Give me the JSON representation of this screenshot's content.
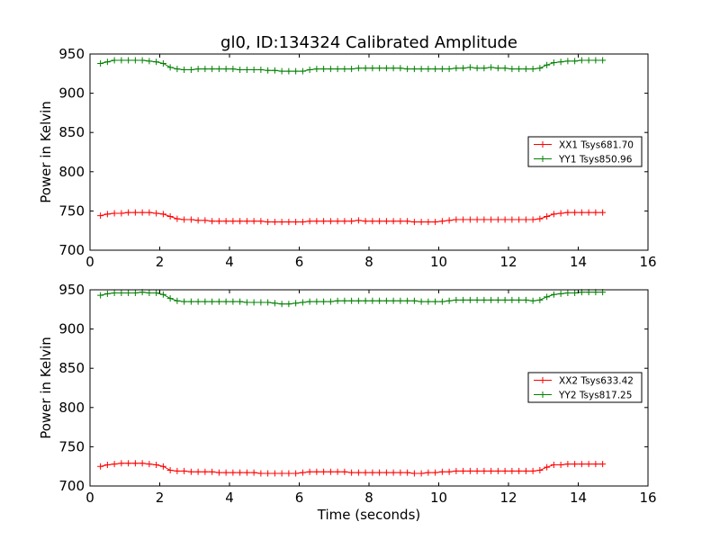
{
  "figure": {
    "title": "gl0, ID:134324 Calibrated Amplitude"
  },
  "colors": {
    "xx": "#ff0000",
    "yy": "#008000",
    "axes": "#000000",
    "background": "#ffffff"
  },
  "chart_data": [
    {
      "type": "line",
      "title": "gl0, ID:134324 Calibrated Amplitude",
      "xlabel": "",
      "ylabel": "Power in Kelvin",
      "xlim": [
        0,
        16
      ],
      "ylim": [
        700,
        950
      ],
      "xticks": [
        0,
        2,
        4,
        6,
        8,
        10,
        12,
        14,
        16
      ],
      "xtick_labels": [
        "0",
        "2",
        "4",
        "6",
        "8",
        "10",
        "12",
        "14",
        "16"
      ],
      "yticks": [
        700,
        750,
        800,
        850,
        900,
        950
      ],
      "ytick_labels": [
        "700",
        "750",
        "800",
        "850",
        "900",
        "950"
      ],
      "grid": false,
      "legend_position": "center-right",
      "marker": "+",
      "x": [
        0.3,
        0.5,
        0.7,
        0.9,
        1.1,
        1.3,
        1.5,
        1.7,
        1.9,
        2.1,
        2.3,
        2.5,
        2.7,
        2.9,
        3.1,
        3.3,
        3.5,
        3.7,
        3.9,
        4.1,
        4.3,
        4.5,
        4.7,
        4.9,
        5.1,
        5.3,
        5.5,
        5.7,
        5.9,
        6.1,
        6.3,
        6.5,
        6.7,
        6.9,
        7.1,
        7.3,
        7.5,
        7.7,
        7.9,
        8.1,
        8.3,
        8.5,
        8.7,
        8.9,
        9.1,
        9.3,
        9.5,
        9.7,
        9.9,
        10.1,
        10.3,
        10.5,
        10.7,
        10.9,
        11.1,
        11.3,
        11.5,
        11.7,
        11.9,
        12.1,
        12.3,
        12.5,
        12.7,
        12.9,
        13.1,
        13.3,
        13.5,
        13.7,
        13.9,
        14.1,
        14.3,
        14.5,
        14.7
      ],
      "series": [
        {
          "name": "XX1 Tsys681.70",
          "color": "#ff0000",
          "values": [
            744,
            746,
            747,
            747,
            748,
            748,
            748,
            748,
            747,
            746,
            743,
            740,
            739,
            739,
            738,
            738,
            737,
            737,
            737,
            737,
            737,
            737,
            737,
            737,
            736,
            736,
            736,
            736,
            736,
            736,
            737,
            737,
            737,
            737,
            737,
            737,
            737,
            738,
            737,
            737,
            737,
            737,
            737,
            737,
            737,
            736,
            736,
            736,
            736,
            737,
            738,
            739,
            739,
            739,
            739,
            739,
            739,
            739,
            739,
            739,
            739,
            739,
            739,
            740,
            743,
            746,
            747,
            748,
            748,
            748,
            748,
            748,
            748
          ]
        },
        {
          "name": "YY1 Tsys850.96",
          "color": "#008000",
          "values": [
            938,
            940,
            942,
            942,
            942,
            942,
            942,
            941,
            940,
            938,
            933,
            931,
            930,
            930,
            931,
            931,
            931,
            931,
            931,
            931,
            930,
            930,
            930,
            930,
            929,
            929,
            928,
            928,
            928,
            928,
            930,
            931,
            931,
            931,
            931,
            931,
            931,
            932,
            932,
            932,
            932,
            932,
            932,
            932,
            931,
            931,
            931,
            931,
            931,
            931,
            931,
            932,
            932,
            933,
            932,
            932,
            933,
            932,
            932,
            931,
            931,
            931,
            931,
            932,
            936,
            939,
            940,
            941,
            941,
            942,
            942,
            942,
            942
          ]
        }
      ]
    },
    {
      "type": "line",
      "title": "",
      "xlabel": "Time (seconds)",
      "ylabel": "Power in Kelvin",
      "xlim": [
        0,
        16
      ],
      "ylim": [
        700,
        950
      ],
      "xticks": [
        0,
        2,
        4,
        6,
        8,
        10,
        12,
        14,
        16
      ],
      "xtick_labels": [
        "0",
        "2",
        "4",
        "6",
        "8",
        "10",
        "12",
        "14",
        "16"
      ],
      "yticks": [
        700,
        750,
        800,
        850,
        900,
        950
      ],
      "ytick_labels": [
        "700",
        "750",
        "800",
        "850",
        "900",
        "950"
      ],
      "grid": false,
      "legend_position": "center-right",
      "marker": "+",
      "x": [
        0.3,
        0.5,
        0.7,
        0.9,
        1.1,
        1.3,
        1.5,
        1.7,
        1.9,
        2.1,
        2.3,
        2.5,
        2.7,
        2.9,
        3.1,
        3.3,
        3.5,
        3.7,
        3.9,
        4.1,
        4.3,
        4.5,
        4.7,
        4.9,
        5.1,
        5.3,
        5.5,
        5.7,
        5.9,
        6.1,
        6.3,
        6.5,
        6.7,
        6.9,
        7.1,
        7.3,
        7.5,
        7.7,
        7.9,
        8.1,
        8.3,
        8.5,
        8.7,
        8.9,
        9.1,
        9.3,
        9.5,
        9.7,
        9.9,
        10.1,
        10.3,
        10.5,
        10.7,
        10.9,
        11.1,
        11.3,
        11.5,
        11.7,
        11.9,
        12.1,
        12.3,
        12.5,
        12.7,
        12.9,
        13.1,
        13.3,
        13.5,
        13.7,
        13.9,
        14.1,
        14.3,
        14.5,
        14.7
      ],
      "series": [
        {
          "name": "XX2 Tsys633.42",
          "color": "#ff0000",
          "values": [
            725,
            727,
            728,
            729,
            729,
            729,
            729,
            728,
            727,
            725,
            720,
            719,
            719,
            718,
            718,
            718,
            718,
            717,
            717,
            717,
            717,
            717,
            717,
            716,
            716,
            716,
            716,
            716,
            716,
            717,
            718,
            718,
            718,
            718,
            718,
            718,
            717,
            717,
            717,
            717,
            717,
            717,
            717,
            717,
            717,
            716,
            716,
            717,
            717,
            718,
            718,
            719,
            719,
            719,
            719,
            719,
            719,
            719,
            719,
            719,
            719,
            719,
            719,
            720,
            724,
            727,
            727,
            728,
            728,
            728,
            728,
            728,
            728
          ]
        },
        {
          "name": "YY2 Tsys817.25",
          "color": "#008000",
          "values": [
            943,
            945,
            946,
            946,
            946,
            946,
            947,
            946,
            946,
            944,
            939,
            936,
            935,
            935,
            935,
            935,
            935,
            935,
            935,
            935,
            935,
            934,
            934,
            934,
            934,
            933,
            932,
            932,
            933,
            934,
            935,
            935,
            935,
            935,
            936,
            936,
            936,
            936,
            936,
            936,
            936,
            936,
            936,
            936,
            936,
            936,
            935,
            935,
            935,
            935,
            936,
            937,
            937,
            937,
            937,
            937,
            937,
            937,
            937,
            937,
            937,
            937,
            936,
            937,
            941,
            944,
            945,
            946,
            946,
            947,
            947,
            947,
            947
          ]
        }
      ]
    }
  ]
}
